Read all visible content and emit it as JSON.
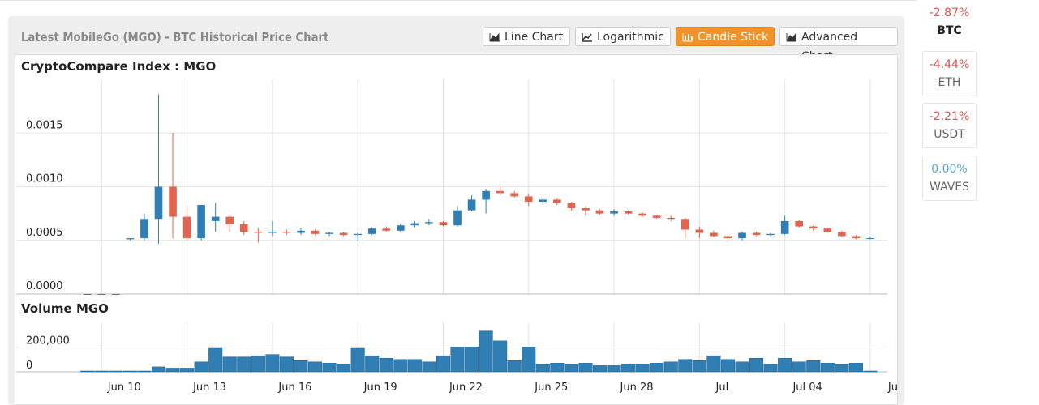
{
  "header": {
    "title": "Latest MobileGo (MGO) - BTC Historical Price Chart",
    "buttons": [
      "Line Chart",
      "Logarithmic",
      "Candle Stick",
      "Advanced Chart"
    ]
  },
  "sidebar": [
    {
      "change": "-2.87%",
      "symbol": "BTC"
    },
    {
      "change": "-4.44%",
      "symbol": "ETH"
    },
    {
      "change": "-2.21%",
      "symbol": "USDT"
    },
    {
      "change": "0.00%",
      "symbol": "WAVES"
    }
  ],
  "chart_data": {
    "type": "candlestick",
    "title": "CryptoCompare Index : MGO",
    "volume_title": "Volume MGO",
    "up_color": "#2f7fb5",
    "down_color": "#e0654f",
    "grid": true,
    "x": [
      9.5,
      10,
      10.5,
      11,
      11.5,
      12,
      12.5,
      13,
      13.5,
      14,
      14.5,
      15,
      15.5,
      16,
      16.5,
      17,
      17.5,
      18,
      18.5,
      19,
      19.5,
      20,
      20.5,
      21,
      21.5,
      22,
      22.5,
      23,
      23.5,
      24,
      24.5,
      25,
      25.5,
      26,
      26.5,
      27,
      27.5,
      28,
      28.5,
      29,
      29.5,
      30,
      30.5,
      31,
      31.5,
      32,
      32.5,
      33,
      33.5,
      34,
      34.5,
      35,
      35.5,
      36,
      36.5,
      37
    ],
    "open": [
      0,
      0,
      0,
      0.00051,
      0.00052,
      0.0007,
      0.001,
      0.00072,
      0.00052,
      0.00068,
      0.00072,
      0.00065,
      0.00058,
      0.00057,
      0.00058,
      0.00057,
      0.00059,
      0.00056,
      0.00057,
      0.00055,
      0.00056,
      0.00061,
      0.00059,
      0.00064,
      0.00066,
      0.00067,
      0.00064,
      0.00078,
      0.00088,
      0.00096,
      0.00094,
      0.00091,
      0.00086,
      0.00088,
      0.00085,
      0.0008,
      0.00078,
      0.00075,
      0.00077,
      0.00075,
      0.00073,
      0.00071,
      0.0007,
      0.0006,
      0.00057,
      0.00054,
      0.00052,
      0.00057,
      0.00055,
      0.00056,
      0.00068,
      0.00063,
      0.00061,
      0.00058,
      0.00054,
      0.00052
    ],
    "high": [
      0,
      0,
      0,
      0.00052,
      0.00075,
      0.00186,
      0.0015,
      0.00083,
      0.00083,
      0.00085,
      0.00073,
      0.00068,
      0.00062,
      0.00068,
      0.0006,
      0.00062,
      0.0006,
      0.00058,
      0.00058,
      0.00058,
      0.00062,
      0.00063,
      0.00066,
      0.00068,
      0.0007,
      0.00068,
      0.00082,
      0.00092,
      0.00098,
      0.001,
      0.00096,
      0.00093,
      0.00089,
      0.00089,
      0.00086,
      0.00082,
      0.00079,
      0.00079,
      0.00078,
      0.00076,
      0.00074,
      0.00073,
      0.00071,
      0.00063,
      0.00059,
      0.00056,
      0.00058,
      0.00058,
      0.00057,
      0.00073,
      0.00069,
      0.00064,
      0.00062,
      0.00059,
      0.00055,
      0.00053
    ],
    "low": [
      0,
      0,
      0,
      0.0005,
      0.0005,
      0.00047,
      0.00052,
      0.0005,
      0.0005,
      0.00058,
      0.00058,
      0.00055,
      0.00048,
      0.00054,
      0.00055,
      0.00055,
      0.00055,
      0.00054,
      0.00054,
      0.00049,
      0.00055,
      0.00058,
      0.00058,
      0.00062,
      0.00064,
      0.00063,
      0.00063,
      0.00077,
      0.00075,
      0.00092,
      0.0009,
      0.00082,
      0.00083,
      0.00083,
      0.00078,
      0.00073,
      0.00074,
      0.00073,
      0.00074,
      0.00072,
      0.0007,
      0.00068,
      0.00051,
      0.00052,
      0.00053,
      0.00048,
      0.0005,
      0.00054,
      0.00054,
      0.00055,
      0.00062,
      0.00059,
      0.00057,
      0.00053,
      0.00051,
      0.00051
    ],
    "close": [
      0,
      0,
      0,
      0.00052,
      0.0007,
      0.001,
      0.00072,
      0.00052,
      0.00083,
      0.00072,
      0.00065,
      0.00058,
      0.00057,
      0.00058,
      0.00057,
      0.00059,
      0.00056,
      0.00057,
      0.00055,
      0.00056,
      0.00061,
      0.00059,
      0.00064,
      0.00066,
      0.00067,
      0.00064,
      0.00078,
      0.00088,
      0.00096,
      0.00094,
      0.00091,
      0.00086,
      0.00088,
      0.00085,
      0.0008,
      0.00078,
      0.00075,
      0.00077,
      0.00075,
      0.00073,
      0.00071,
      0.0007,
      0.0006,
      0.00057,
      0.00054,
      0.00052,
      0.00057,
      0.00055,
      0.00056,
      0.00068,
      0.00063,
      0.00061,
      0.00058,
      0.00054,
      0.00052,
      0.00052
    ],
    "volume": [
      0,
      0,
      0,
      5000,
      5000,
      40000,
      30000,
      30000,
      80000,
      190000,
      120000,
      120000,
      130000,
      140000,
      120000,
      90000,
      80000,
      70000,
      60000,
      190000,
      130000,
      110000,
      100000,
      100000,
      80000,
      130000,
      200000,
      200000,
      330000,
      250000,
      90000,
      200000,
      60000,
      70000,
      60000,
      70000,
      50000,
      50000,
      60000,
      60000,
      70000,
      80000,
      100000,
      90000,
      130000,
      100000,
      80000,
      110000,
      60000,
      110000,
      80000,
      90000,
      70000,
      60000,
      70000,
      0
    ],
    "xlim": [
      7,
      37.6
    ],
    "xticks": [
      {
        "value": 10,
        "label": "Jun 10"
      },
      {
        "value": 13,
        "label": "Jun 13"
      },
      {
        "value": 16,
        "label": "Jun 16"
      },
      {
        "value": 19,
        "label": "Jun 19"
      },
      {
        "value": 22,
        "label": "Jun 22"
      },
      {
        "value": 25,
        "label": "Jun 25"
      },
      {
        "value": 28,
        "label": "Jun 28"
      },
      {
        "value": 31,
        "label": "Jul"
      },
      {
        "value": 34,
        "label": "Jul 04"
      },
      {
        "value": 37,
        "label": "Ju"
      }
    ],
    "ylim": [
      0,
      0.002
    ],
    "yticks": [
      {
        "value": 0,
        "label": "0.0000"
      },
      {
        "value": 0.0005,
        "label": "0.0005"
      },
      {
        "value": 0.001,
        "label": "0.0010"
      },
      {
        "value": 0.0015,
        "label": "0.0015"
      }
    ],
    "volume_ylim": [
      0,
      400000
    ],
    "volume_yticks": [
      0,
      {
        "value": 200000,
        "label": "200,000"
      }
    ]
  }
}
